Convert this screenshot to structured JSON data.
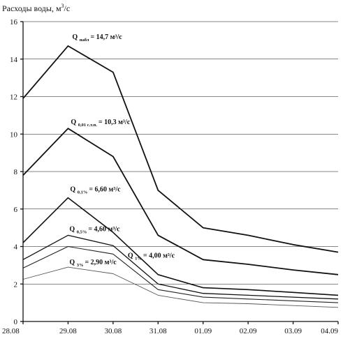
{
  "chart_data": {
    "type": "line",
    "ylabel_text": "Расходы воды, м",
    "ylabel_sup": "3",
    "ylabel_unit": "/с",
    "categories": [
      "28.08",
      "29.08",
      "30.08",
      "31.08",
      "01.09",
      "02.09",
      "03.09",
      "04.09"
    ],
    "ylim": [
      0,
      16
    ],
    "yticks": [
      0,
      2,
      4,
      6,
      8,
      10,
      12,
      14,
      16
    ],
    "grid": "horizontal",
    "series": [
      {
        "label_q": "Q",
        "label_sub": "набл",
        "label_value": "= 14,7 м³/с",
        "values": [
          11.9,
          14.7,
          13.3,
          7.0,
          5.0,
          4.6,
          4.1,
          3.7
        ],
        "color": "#111111",
        "width": 1.8
      },
      {
        "label_q": "Q",
        "label_sub": "0,01 с.т.п.",
        "label_value": "= 10,3 м³/с",
        "values": [
          7.8,
          10.3,
          8.8,
          4.6,
          3.3,
          3.05,
          2.75,
          2.5
        ],
        "color": "#111111",
        "width": 1.8
      },
      {
        "label_q": "Q",
        "label_sub": "0,1%",
        "label_value": "= 6,60 м³/с",
        "values": [
          4.2,
          6.6,
          4.75,
          2.5,
          1.8,
          1.7,
          1.55,
          1.4
        ],
        "color": "#111111",
        "width": 1.6
      },
      {
        "label_q": "Q",
        "label_sub": "0,5%",
        "label_value": "= 4,60 м³/с",
        "values": [
          3.3,
          4.6,
          4.05,
          2.0,
          1.5,
          1.4,
          1.3,
          1.2
        ],
        "color": "#111111",
        "width": 1.3
      },
      {
        "label_q": "Q",
        "label_sub": "1%",
        "label_value": "= 4,00 м³/с",
        "values": [
          2.85,
          4.0,
          3.6,
          1.7,
          1.3,
          1.2,
          1.1,
          1.0
        ],
        "color": "#222222",
        "width": 1.1
      },
      {
        "label_q": "Q",
        "label_sub": "3%",
        "label_value": "= 2,90 м³/с",
        "values": [
          2.25,
          2.9,
          2.55,
          1.4,
          1.0,
          0.95,
          0.85,
          0.75
        ],
        "color": "#555555",
        "width": 0.9
      }
    ]
  }
}
